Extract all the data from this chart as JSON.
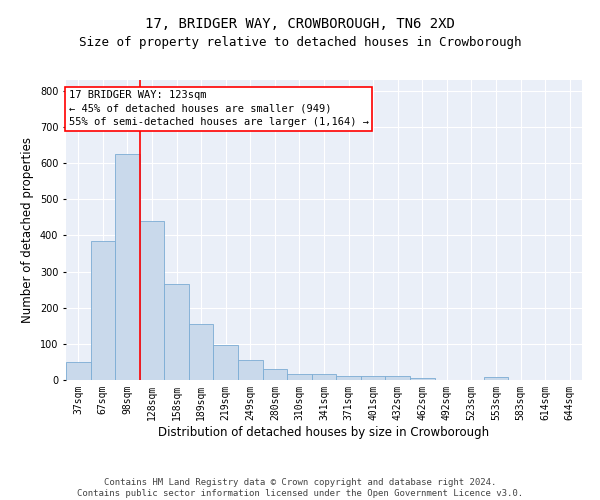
{
  "title": "17, BRIDGER WAY, CROWBOROUGH, TN6 2XD",
  "subtitle": "Size of property relative to detached houses in Crowborough",
  "xlabel": "Distribution of detached houses by size in Crowborough",
  "ylabel": "Number of detached properties",
  "categories": [
    "37sqm",
    "67sqm",
    "98sqm",
    "128sqm",
    "158sqm",
    "189sqm",
    "219sqm",
    "249sqm",
    "280sqm",
    "310sqm",
    "341sqm",
    "371sqm",
    "401sqm",
    "432sqm",
    "462sqm",
    "492sqm",
    "523sqm",
    "553sqm",
    "583sqm",
    "614sqm",
    "644sqm"
  ],
  "values": [
    50,
    385,
    625,
    440,
    265,
    155,
    97,
    55,
    30,
    17,
    16,
    10,
    12,
    12,
    5,
    1,
    0,
    7,
    0,
    1,
    0
  ],
  "bar_color": "#c9d9eb",
  "bar_edge_color": "#7bacd4",
  "vline_x": 2.5,
  "vline_color": "red",
  "annotation_line1": "17 BRIDGER WAY: 123sqm",
  "annotation_line2": "← 45% of detached houses are smaller (949)",
  "annotation_line3": "55% of semi-detached houses are larger (1,164) →",
  "ylim": [
    0,
    830
  ],
  "yticks": [
    0,
    100,
    200,
    300,
    400,
    500,
    600,
    700,
    800
  ],
  "background_color": "#eaeff8",
  "grid_color": "white",
  "footer_line1": "Contains HM Land Registry data © Crown copyright and database right 2024.",
  "footer_line2": "Contains public sector information licensed under the Open Government Licence v3.0.",
  "title_fontsize": 10,
  "subtitle_fontsize": 9,
  "xlabel_fontsize": 8.5,
  "ylabel_fontsize": 8.5,
  "tick_fontsize": 7,
  "footer_fontsize": 6.5,
  "annot_fontsize": 7.5
}
